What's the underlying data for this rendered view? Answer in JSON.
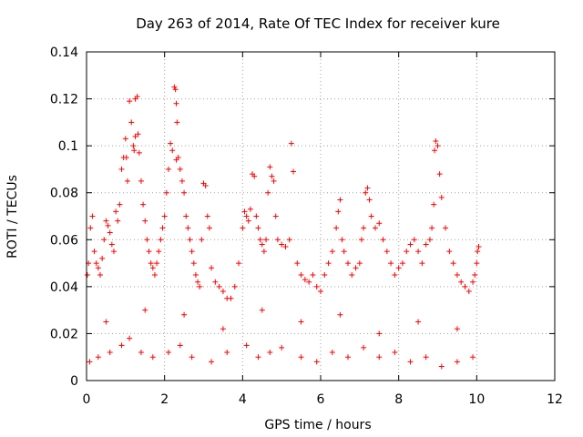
{
  "chart_data": {
    "type": "scatter",
    "title": "Day 263 of 2014, Rate Of TEC Index for receiver kure",
    "xlabel": "GPS time / hours",
    "ylabel": "ROTI / TECUs",
    "xlim": [
      0,
      12
    ],
    "ylim": [
      0,
      0.14
    ],
    "x_ticks": [
      "0",
      "2",
      "4",
      "6",
      "8",
      "10",
      "12"
    ],
    "y_ticks": [
      "0",
      "0.02",
      "0.04",
      "0.06",
      "0.08",
      "0.1",
      "0.12",
      "0.14"
    ],
    "grid": true,
    "marker": "+",
    "color": "#ff0000",
    "series": [
      {
        "name": "ROTI",
        "x": [
          0.02,
          0.05,
          0.1,
          0.15,
          0.2,
          0.25,
          0.3,
          0.35,
          0.4,
          0.45,
          0.5,
          0.55,
          0.6,
          0.65,
          0.7,
          0.75,
          0.8,
          0.85,
          0.9,
          0.95,
          1.0,
          1.02,
          1.05,
          1.1,
          1.15,
          1.2,
          1.22,
          1.25,
          1.3,
          1.32,
          1.35,
          1.4,
          1.45,
          1.5,
          1.55,
          1.6,
          1.65,
          1.7,
          1.75,
          1.8,
          1.85,
          1.9,
          1.95,
          2.0,
          2.05,
          2.1,
          2.15,
          2.2,
          2.25,
          2.28,
          2.3,
          2.32,
          2.35,
          2.4,
          2.45,
          2.5,
          2.55,
          2.6,
          2.65,
          2.7,
          2.75,
          2.8,
          2.85,
          2.9,
          2.95,
          3.0,
          3.05,
          3.1,
          3.15,
          3.2,
          3.3,
          3.4,
          3.5,
          3.6,
          3.7,
          3.8,
          3.9,
          4.0,
          4.05,
          4.1,
          4.15,
          4.2,
          4.25,
          4.3,
          4.35,
          4.4,
          4.45,
          4.5,
          4.55,
          4.6,
          4.65,
          4.7,
          4.75,
          4.8,
          4.85,
          4.9,
          5.0,
          5.1,
          5.2,
          5.25,
          5.3,
          5.4,
          5.5,
          5.6,
          5.7,
          5.8,
          5.9,
          6.0,
          6.1,
          6.2,
          6.3,
          6.4,
          6.45,
          6.5,
          6.55,
          6.6,
          6.7,
          6.8,
          6.9,
          7.0,
          7.05,
          7.1,
          7.15,
          7.2,
          7.25,
          7.3,
          7.4,
          7.5,
          7.6,
          7.7,
          7.8,
          7.9,
          8.0,
          8.1,
          8.2,
          8.3,
          8.4,
          8.5,
          8.6,
          8.7,
          8.8,
          8.85,
          8.9,
          8.92,
          8.95,
          9.0,
          9.05,
          9.1,
          9.2,
          9.3,
          9.4,
          9.5,
          9.6,
          9.7,
          9.8,
          9.9,
          9.95,
          10.0,
          10.02,
          10.05,
          0.08,
          0.3,
          0.6,
          0.9,
          1.1,
          1.4,
          1.7,
          2.1,
          2.4,
          2.7,
          3.2,
          3.6,
          4.1,
          4.4,
          4.7,
          5.0,
          5.5,
          5.9,
          6.3,
          6.7,
          7.1,
          7.5,
          7.9,
          8.3,
          8.7,
          9.1,
          9.5,
          9.9,
          0.5,
          1.5,
          2.5,
          3.5,
          4.5,
          5.5,
          6.5,
          7.5,
          8.5,
          9.5,
          1.25,
          2.3
        ],
        "y": [
          0.045,
          0.05,
          0.065,
          0.07,
          0.055,
          0.05,
          0.048,
          0.045,
          0.052,
          0.06,
          0.068,
          0.066,
          0.063,
          0.058,
          0.055,
          0.072,
          0.068,
          0.075,
          0.09,
          0.095,
          0.103,
          0.095,
          0.085,
          0.119,
          0.11,
          0.1,
          0.098,
          0.12,
          0.121,
          0.105,
          0.097,
          0.085,
          0.075,
          0.068,
          0.06,
          0.055,
          0.05,
          0.048,
          0.045,
          0.05,
          0.055,
          0.06,
          0.065,
          0.07,
          0.08,
          0.09,
          0.101,
          0.098,
          0.125,
          0.124,
          0.118,
          0.11,
          0.095,
          0.09,
          0.085,
          0.08,
          0.07,
          0.065,
          0.06,
          0.055,
          0.05,
          0.045,
          0.042,
          0.04,
          0.06,
          0.084,
          0.083,
          0.07,
          0.065,
          0.048,
          0.042,
          0.04,
          0.038,
          0.035,
          0.035,
          0.04,
          0.05,
          0.065,
          0.072,
          0.07,
          0.068,
          0.073,
          0.088,
          0.087,
          0.07,
          0.065,
          0.06,
          0.058,
          0.055,
          0.06,
          0.08,
          0.091,
          0.087,
          0.085,
          0.07,
          0.06,
          0.058,
          0.057,
          0.06,
          0.101,
          0.089,
          0.05,
          0.045,
          0.043,
          0.042,
          0.045,
          0.04,
          0.038,
          0.045,
          0.05,
          0.055,
          0.065,
          0.072,
          0.077,
          0.06,
          0.055,
          0.05,
          0.045,
          0.048,
          0.05,
          0.06,
          0.065,
          0.08,
          0.082,
          0.077,
          0.07,
          0.065,
          0.067,
          0.06,
          0.055,
          0.05,
          0.045,
          0.048,
          0.05,
          0.055,
          0.058,
          0.06,
          0.055,
          0.05,
          0.058,
          0.06,
          0.065,
          0.075,
          0.098,
          0.102,
          0.1,
          0.088,
          0.078,
          0.065,
          0.055,
          0.05,
          0.045,
          0.042,
          0.04,
          0.038,
          0.042,
          0.045,
          0.05,
          0.055,
          0.057,
          0.008,
          0.01,
          0.012,
          0.015,
          0.018,
          0.012,
          0.01,
          0.012,
          0.015,
          0.01,
          0.008,
          0.012,
          0.015,
          0.01,
          0.012,
          0.014,
          0.01,
          0.008,
          0.012,
          0.01,
          0.014,
          0.01,
          0.012,
          0.008,
          0.01,
          0.006,
          0.008,
          0.01,
          0.025,
          0.03,
          0.028,
          0.022,
          0.03,
          0.025,
          0.028,
          0.02,
          0.025,
          0.022,
          0.104,
          0.094
        ]
      }
    ]
  }
}
